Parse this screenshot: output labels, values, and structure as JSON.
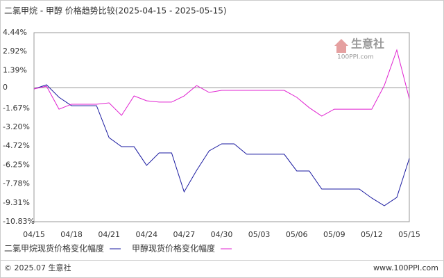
{
  "chart_data": {
    "type": "line",
    "title": "二氯甲烷 - 甲醇 价格趋势比较(2025-04-15 - 2025-05-15)",
    "categories": [
      "04/15",
      null,
      null,
      "04/18",
      null,
      null,
      "04/21",
      null,
      null,
      "04/24",
      null,
      null,
      "04/27",
      null,
      null,
      "04/30",
      null,
      null,
      "05/03",
      null,
      null,
      "05/06",
      null,
      null,
      "05/09",
      null,
      null,
      "05/12",
      null,
      null,
      "05/15"
    ],
    "series": [
      {
        "name": "二氯甲烷现货价格变化幅度",
        "color": "#1a1aa0",
        "values": [
          -0.11,
          0.23,
          -0.78,
          -1.46,
          -1.46,
          -1.46,
          -4.04,
          -4.77,
          -4.77,
          -6.28,
          -5.27,
          -5.27,
          -8.42,
          -6.68,
          -5.11,
          -4.54,
          -4.54,
          -5.38,
          -5.38,
          -5.38,
          -5.38,
          -6.73,
          -6.73,
          -8.19,
          -8.19,
          -8.19,
          -8.19,
          -8.92,
          -9.54,
          -8.87,
          -5.72
        ]
      },
      {
        "name": "甲醇现货价格变化幅度",
        "color": "#e020d0",
        "values": [
          -0.11,
          0.12,
          -1.74,
          -1.34,
          -1.34,
          -1.34,
          -1.23,
          -2.24,
          -0.67,
          -1.06,
          -1.17,
          -1.17,
          -0.67,
          0.17,
          -0.39,
          -0.22,
          -0.22,
          -0.22,
          -0.22,
          -0.22,
          -0.22,
          -0.78,
          -1.62,
          -2.3,
          -1.74,
          -1.74,
          -1.74,
          -1.74,
          0.17,
          3.04,
          -0.89
        ]
      }
    ],
    "ylim": [
      -10.83,
      4.44
    ],
    "yticks": [
      {
        "value": 4.44,
        "label": "4.44%"
      },
      {
        "value": 2.92,
        "label": "2.92%"
      },
      {
        "value": 1.39,
        "label": "1.39%"
      },
      0,
      {
        "value": -1.67,
        "label": "-1.67%"
      },
      {
        "value": -3.2,
        "label": "-3.20%"
      },
      {
        "value": -4.72,
        "label": "-4.72%"
      },
      {
        "value": -6.25,
        "label": "-6.25%"
      },
      {
        "value": -7.78,
        "label": "-7.78%"
      },
      {
        "value": -9.31,
        "label": "-9.31%"
      },
      {
        "value": -10.83,
        "label": "-10.83%"
      }
    ],
    "watermark": {
      "name": "生意社",
      "site": "100PPI.com"
    },
    "footer": {
      "left": "© 2025.07 生意社",
      "right": "www.100PPI.com"
    }
  }
}
